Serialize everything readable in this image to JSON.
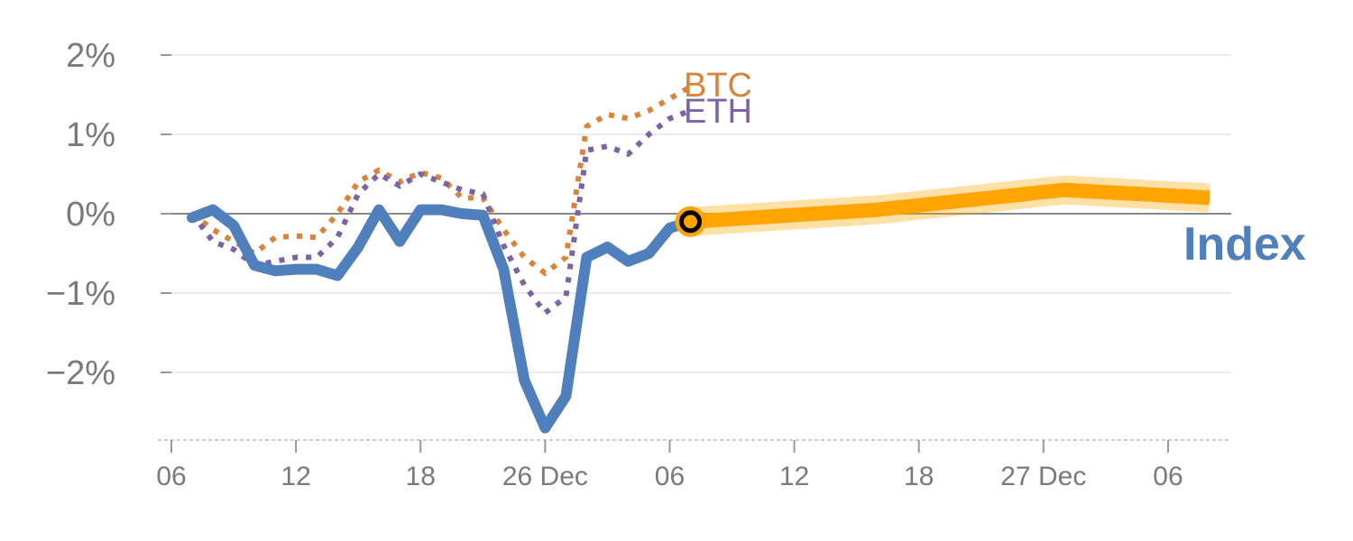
{
  "chart_data": {
    "type": "line",
    "title": "",
    "xlabel": "",
    "ylabel": "",
    "ylim": [
      -2.8,
      2.0
    ],
    "xlim": [
      0,
      51
    ],
    "y_ticks": [
      {
        "value": 2,
        "label": "2%"
      },
      {
        "value": 1,
        "label": "1%"
      },
      {
        "value": 0,
        "label": "0%"
      },
      {
        "value": -1,
        "label": "−1%"
      },
      {
        "value": -2,
        "label": "−2%"
      }
    ],
    "x_ticks": [
      {
        "value": 0,
        "label": "06"
      },
      {
        "value": 6,
        "label": "12"
      },
      {
        "value": 12,
        "label": "18"
      },
      {
        "value": 18,
        "label": "26 Dec"
      },
      {
        "value": 24,
        "label": "06"
      },
      {
        "value": 30,
        "label": "12"
      },
      {
        "value": 36,
        "label": "18"
      },
      {
        "value": 42,
        "label": "27 Dec"
      },
      {
        "value": 48,
        "label": "06"
      }
    ],
    "series": [
      {
        "name": "BTC",
        "label": "BTC",
        "color": "#d9843a",
        "style": "dotted",
        "x": [
          1,
          2,
          3,
          4,
          5,
          6,
          7,
          8,
          9,
          10,
          11,
          12,
          13,
          14,
          15,
          16,
          17,
          18,
          19,
          20,
          21,
          22,
          23,
          24,
          25
        ],
        "values": [
          0.0,
          -0.2,
          -0.35,
          -0.5,
          -0.3,
          -0.28,
          -0.3,
          0.0,
          0.4,
          0.55,
          0.4,
          0.52,
          0.45,
          0.2,
          0.2,
          -0.2,
          -0.55,
          -0.75,
          -0.55,
          1.1,
          1.25,
          1.2,
          1.3,
          1.45,
          1.6
        ]
      },
      {
        "name": "ETH",
        "label": "ETH",
        "color": "#7d62a6",
        "style": "dotted",
        "x": [
          1,
          2,
          3,
          4,
          5,
          6,
          7,
          8,
          9,
          10,
          11,
          12,
          13,
          14,
          15,
          16,
          17,
          18,
          19,
          20,
          21,
          22,
          23,
          24,
          25
        ],
        "values": [
          0.0,
          -0.35,
          -0.45,
          -0.65,
          -0.6,
          -0.55,
          -0.55,
          -0.3,
          0.25,
          0.5,
          0.35,
          0.5,
          0.4,
          0.3,
          0.25,
          -0.4,
          -0.9,
          -1.25,
          -1.05,
          0.8,
          0.85,
          0.75,
          1.0,
          1.2,
          1.3
        ]
      },
      {
        "name": "Index",
        "label": "Index",
        "color": "#4f80bd",
        "style": "solid",
        "x": [
          1,
          2,
          3,
          4,
          5,
          6,
          7,
          8,
          9,
          10,
          11,
          12,
          13,
          14,
          15,
          16,
          17,
          18,
          19,
          20,
          21,
          22,
          23,
          24,
          25
        ],
        "values": [
          -0.05,
          0.05,
          -0.15,
          -0.65,
          -0.72,
          -0.7,
          -0.7,
          -0.78,
          -0.42,
          0.05,
          -0.35,
          0.05,
          0.05,
          0.0,
          -0.02,
          -0.7,
          -2.1,
          -2.7,
          -2.3,
          -0.55,
          -0.42,
          -0.6,
          -0.5,
          -0.18,
          -0.1
        ]
      },
      {
        "name": "Forecast",
        "label": "",
        "color": "#ffa500",
        "style": "band",
        "x": [
          25,
          34,
          43,
          50
        ],
        "values": [
          -0.1,
          0.05,
          0.3,
          0.2
        ]
      }
    ],
    "marker": {
      "x": 25,
      "value": -0.1,
      "color": "#ffa500"
    },
    "zero_line": true
  }
}
